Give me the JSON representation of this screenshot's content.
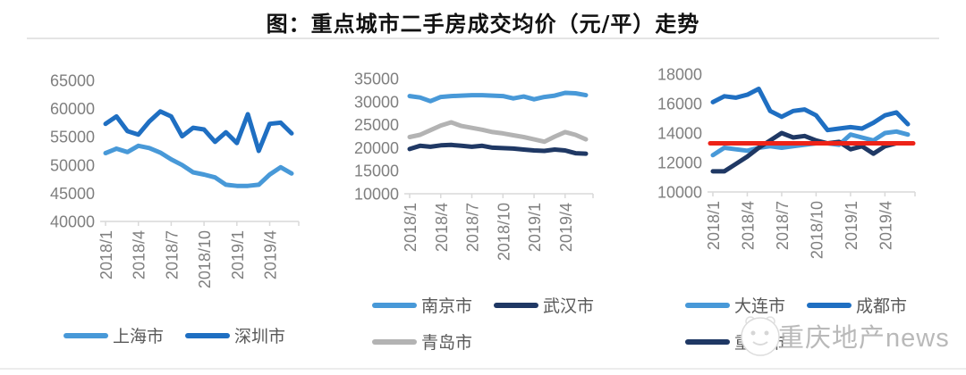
{
  "page": {
    "title": "图：重点城市二手房成交均价（元/平）走势",
    "watermark_text": "重庆地产news"
  },
  "colors": {
    "light_blue": "#4899D8",
    "medium_blue": "#1F6FC2",
    "navy": "#1F3864",
    "gray": "#B3B3B3",
    "red": "#ED2318",
    "axis_line": "#D9D9D9",
    "tick_text": "#7F7F7F",
    "legend_text": "#595959"
  },
  "chart_data": [
    {
      "type": "line",
      "title": "",
      "xlabel": "",
      "ylabel": "",
      "grid": false,
      "legend_position": "bottom",
      "x": [
        "2018/1",
        "2018/2",
        "2018/3",
        "2018/4",
        "2018/5",
        "2018/6",
        "2018/7",
        "2018/8",
        "2018/9",
        "2018/10",
        "2018/11",
        "2018/12",
        "2019/1",
        "2019/2",
        "2019/3",
        "2019/4",
        "2019/5",
        "2019/6"
      ],
      "xtick_labels": [
        "2018/1",
        "2018/4",
        "2018/7",
        "2018/10",
        "2019/1",
        "2019/4"
      ],
      "xtick_indices": [
        0,
        3,
        6,
        9,
        12,
        15
      ],
      "ylim": [
        40000,
        65000
      ],
      "ytick_step": 5000,
      "series": [
        {
          "name": "上海市",
          "color": "#4899D8",
          "values": [
            52100,
            52900,
            52300,
            53400,
            53000,
            52200,
            51000,
            50000,
            48700,
            48300,
            47800,
            46500,
            46300,
            46300,
            46500,
            48300,
            49600,
            48500
          ]
        },
        {
          "name": "深圳市",
          "color": "#1F6FC2",
          "values": [
            57300,
            58600,
            56000,
            55400,
            57700,
            59500,
            58600,
            55100,
            56600,
            56300,
            54100,
            55800,
            53900,
            59000,
            52500,
            57300,
            57500,
            55600
          ]
        }
      ],
      "legend_rows": [
        [
          "上海市",
          "深圳市"
        ]
      ]
    },
    {
      "type": "line",
      "title": "",
      "xlabel": "",
      "ylabel": "",
      "grid": false,
      "legend_position": "bottom",
      "x": [
        "2018/1",
        "2018/2",
        "2018/3",
        "2018/4",
        "2018/5",
        "2018/6",
        "2018/7",
        "2018/8",
        "2018/9",
        "2018/10",
        "2018/11",
        "2018/12",
        "2019/1",
        "2019/2",
        "2019/3",
        "2019/4",
        "2019/5",
        "2019/6"
      ],
      "xtick_labels": [
        "2018/1",
        "2018/4",
        "2018/7",
        "2018/10",
        "2019/1",
        "2019/4"
      ],
      "xtick_indices": [
        0,
        3,
        6,
        9,
        12,
        15
      ],
      "ylim": [
        10000,
        35000
      ],
      "ytick_step": 5000,
      "series": [
        {
          "name": "南京市",
          "color": "#4899D8",
          "values": [
            31200,
            30900,
            30100,
            31000,
            31200,
            31300,
            31400,
            31400,
            31300,
            31200,
            30700,
            31100,
            30500,
            31000,
            31300,
            31900,
            31800,
            31400
          ]
        },
        {
          "name": "武汉市",
          "color": "#1F3864",
          "values": [
            19700,
            20400,
            20200,
            20500,
            20600,
            20400,
            20200,
            20400,
            20000,
            19900,
            19800,
            19600,
            19400,
            19300,
            19600,
            19400,
            18800,
            18700
          ]
        },
        {
          "name": "青岛市",
          "color": "#B3B3B3",
          "values": [
            22300,
            22800,
            23800,
            24800,
            25500,
            24700,
            24300,
            23900,
            23400,
            23100,
            22700,
            22300,
            21800,
            21300,
            22400,
            23400,
            22800,
            21800
          ]
        }
      ],
      "legend_rows": [
        [
          "南京市",
          "武汉市"
        ],
        [
          "青岛市"
        ]
      ]
    },
    {
      "type": "line",
      "title": "",
      "xlabel": "",
      "ylabel": "",
      "grid": false,
      "legend_position": "bottom",
      "x": [
        "2018/1",
        "2018/2",
        "2018/3",
        "2018/4",
        "2018/5",
        "2018/6",
        "2018/7",
        "2018/8",
        "2018/9",
        "2018/10",
        "2018/11",
        "2018/12",
        "2019/1",
        "2019/2",
        "2019/3",
        "2019/4",
        "2019/5",
        "2019/6"
      ],
      "xtick_labels": [
        "2018/1",
        "2018/4",
        "2018/7",
        "2018/10",
        "2019/1",
        "2019/4"
      ],
      "xtick_indices": [
        0,
        3,
        6,
        9,
        12,
        15
      ],
      "ylim": [
        10000,
        18000
      ],
      "ytick_step": 2000,
      "series": [
        {
          "name": "大连市",
          "color": "#4899D8",
          "values": [
            12500,
            13000,
            12900,
            12800,
            13000,
            13100,
            13000,
            13100,
            13200,
            13300,
            13300,
            13200,
            13900,
            13700,
            13500,
            14000,
            14100,
            13900
          ]
        },
        {
          "name": "成都市",
          "color": "#1F6FC2",
          "values": [
            16100,
            16500,
            16400,
            16600,
            17000,
            15500,
            15100,
            15500,
            15600,
            15200,
            14200,
            14300,
            14400,
            14300,
            14700,
            15200,
            15400,
            14600
          ]
        },
        {
          "name": "重庆市",
          "color": "#1F3864",
          "values": [
            11400,
            11400,
            11900,
            12400,
            13000,
            13500,
            14000,
            13700,
            13800,
            13500,
            13300,
            13400,
            12900,
            13100,
            12600,
            13100,
            13300,
            13300
          ]
        }
      ],
      "reference_line": {
        "value": 13300,
        "color": "#ED2318"
      },
      "legend_rows": [
        [
          "大连市",
          "成都市"
        ],
        [
          "重庆市"
        ]
      ]
    }
  ]
}
